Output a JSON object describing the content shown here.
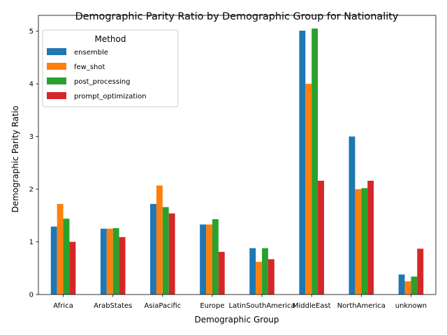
{
  "chart_data": {
    "type": "bar",
    "title": "Demographic Parity Ratio by Demographic Group for Nationality",
    "xlabel": "Demographic Group",
    "ylabel": "Demographic Parity Ratio",
    "ylim": [
      0,
      5.3
    ],
    "yticks": [
      0,
      1,
      2,
      3,
      4,
      5
    ],
    "grid": false,
    "legend": {
      "title": "Method",
      "placement": "top-left"
    },
    "categories": [
      "Africa",
      "ArabStates",
      "AsiaPacific",
      "Europe",
      "LatinSouthAmerica",
      "MiddleEast",
      "NorthAmerica",
      "unknown"
    ],
    "series": [
      {
        "name": "ensemble",
        "color": "#1f77b4",
        "values": [
          1.29,
          1.25,
          1.72,
          1.33,
          0.88,
          5.01,
          3.0,
          0.38
        ]
      },
      {
        "name": "few_shot",
        "color": "#ff7f0e",
        "values": [
          1.72,
          1.25,
          2.07,
          1.33,
          0.62,
          4.0,
          2.0,
          0.25
        ]
      },
      {
        "name": "post_processing",
        "color": "#2ca02c",
        "values": [
          1.44,
          1.26,
          1.66,
          1.43,
          0.88,
          5.05,
          2.02,
          0.34
        ]
      },
      {
        "name": "prompt_optimization",
        "color": "#d62728",
        "values": [
          1.0,
          1.09,
          1.54,
          0.81,
          0.67,
          2.16,
          2.16,
          0.87
        ]
      }
    ]
  }
}
